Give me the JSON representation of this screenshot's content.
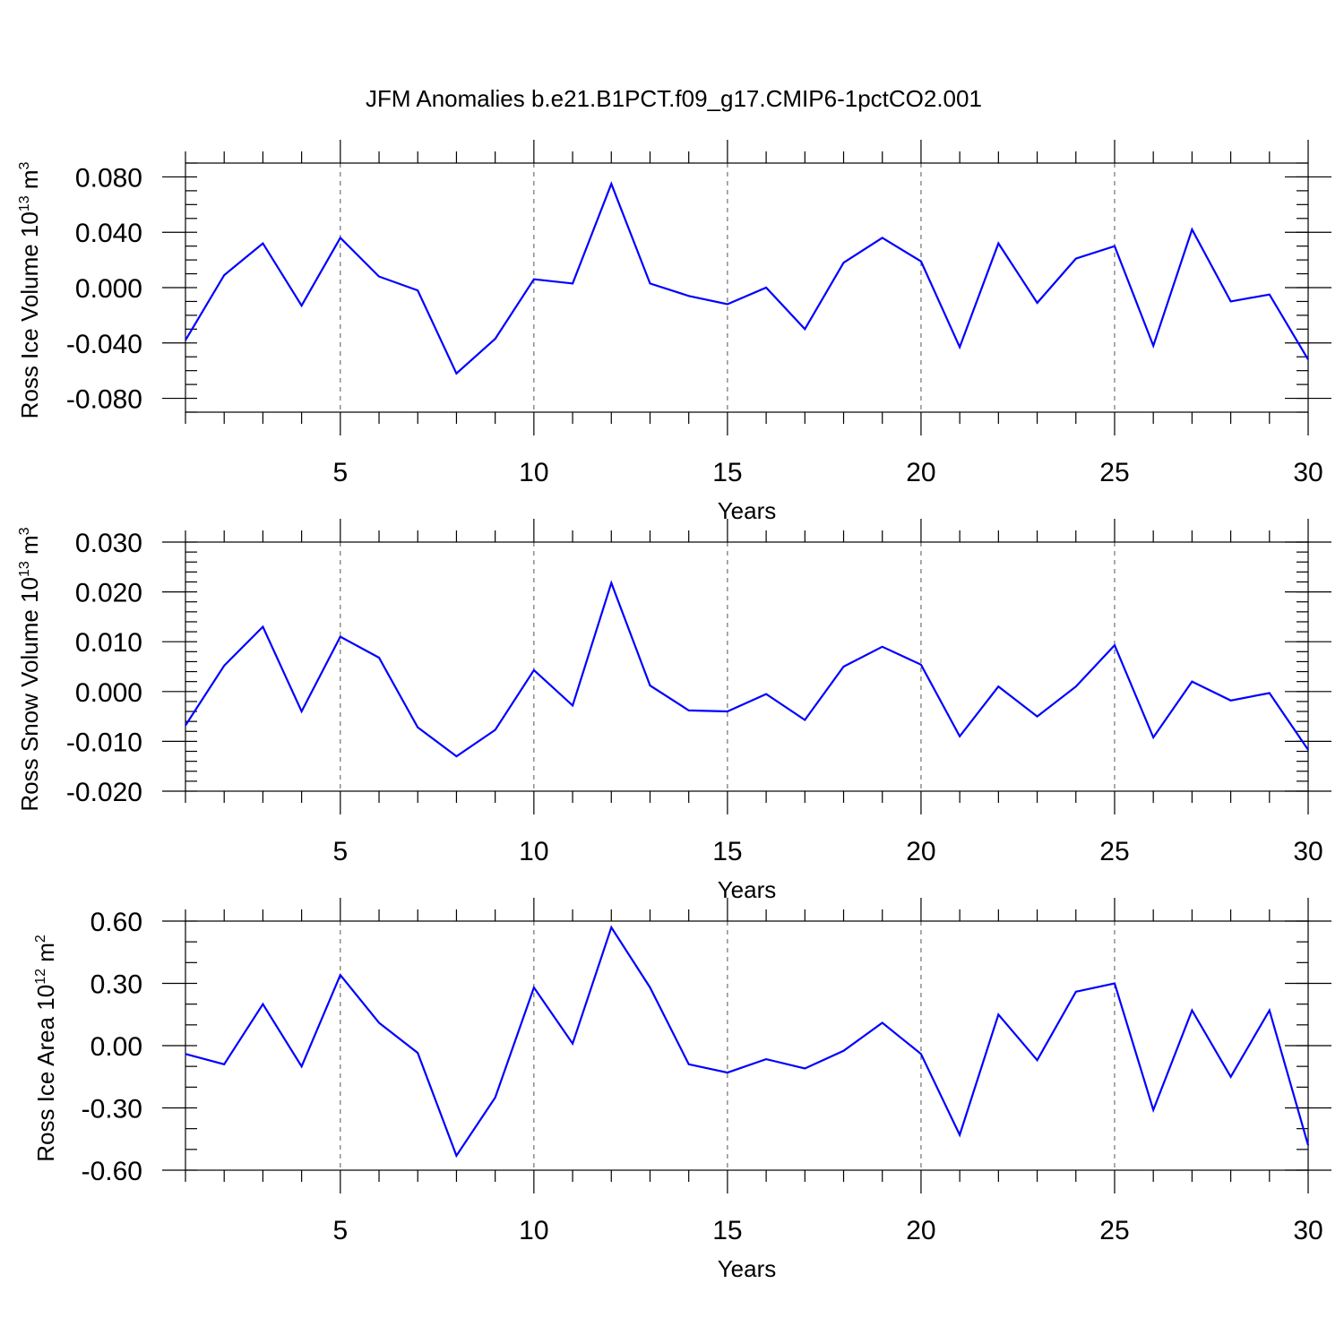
{
  "title": "JFM Anomalies b.e21.B1PCT.f09_g17.CMIP6-1pctCO2.001",
  "chart_data": [
    {
      "type": "line",
      "ylabel": {
        "main": "Ross Ice Volume 10",
        "sup1": "13",
        "unit": " m",
        "sup2": "3"
      },
      "xlabel": "Years",
      "xlim": [
        1,
        30
      ],
      "ylim": [
        -0.09,
        0.09
      ],
      "yticks": [
        -0.08,
        -0.04,
        0.0,
        0.04,
        0.08
      ],
      "ytick_labels": [
        "-0.080",
        "-0.040",
        "0.000",
        "0.040",
        "0.080"
      ],
      "yminor_step": 0.01,
      "xticks": [
        5,
        10,
        15,
        20,
        25,
        30
      ],
      "xtick_labels": [
        "5",
        "10",
        "15",
        "20",
        "25",
        "30"
      ],
      "grid": "dashed vertical at major x ticks",
      "series": [
        {
          "color": "#0000ff",
          "x": [
            1,
            2,
            3,
            4,
            5,
            6,
            7,
            8,
            9,
            10,
            11,
            12,
            13,
            14,
            15,
            16,
            17,
            18,
            19,
            20,
            21,
            22,
            23,
            24,
            25,
            26,
            27,
            28,
            29,
            30
          ],
          "values": [
            -0.038,
            0.009,
            0.032,
            -0.013,
            0.036,
            0.008,
            -0.002,
            -0.062,
            -0.037,
            0.006,
            0.003,
            0.075,
            0.003,
            -0.006,
            -0.012,
            0.0,
            -0.03,
            0.018,
            0.036,
            0.019,
            -0.043,
            0.032,
            -0.011,
            0.021,
            0.03,
            -0.042,
            0.042,
            -0.01,
            -0.005,
            -0.052
          ]
        }
      ]
    },
    {
      "type": "line",
      "ylabel": {
        "main": "Ross Snow Volume 10",
        "sup1": "13",
        "unit": " m",
        "sup2": "3"
      },
      "xlabel": "Years",
      "xlim": [
        1,
        30
      ],
      "ylim": [
        -0.02,
        0.03
      ],
      "yticks": [
        -0.02,
        -0.01,
        0.0,
        0.01,
        0.02,
        0.03
      ],
      "ytick_labels": [
        "-0.020",
        "-0.010",
        "0.000",
        "0.010",
        "0.020",
        "0.030"
      ],
      "yminor_step": 0.002,
      "xticks": [
        5,
        10,
        15,
        20,
        25,
        30
      ],
      "xtick_labels": [
        "5",
        "10",
        "15",
        "20",
        "25",
        "30"
      ],
      "grid": "dashed vertical at major x ticks",
      "series": [
        {
          "color": "#0000ff",
          "x": [
            1,
            2,
            3,
            4,
            5,
            6,
            7,
            8,
            9,
            10,
            11,
            12,
            13,
            14,
            15,
            16,
            17,
            18,
            19,
            20,
            21,
            22,
            23,
            24,
            25,
            26,
            27,
            28,
            29,
            30
          ],
          "values": [
            -0.0068,
            0.0052,
            0.013,
            -0.004,
            0.011,
            0.0068,
            -0.0072,
            -0.013,
            -0.0077,
            0.0043,
            -0.0028,
            0.0218,
            0.0012,
            -0.0038,
            -0.004,
            -0.0005,
            -0.0057,
            0.005,
            0.009,
            0.0054,
            -0.009,
            0.001,
            -0.005,
            0.001,
            0.0093,
            -0.0092,
            0.002,
            -0.0018,
            -0.0003,
            -0.0117
          ]
        }
      ]
    },
    {
      "type": "line",
      "ylabel": {
        "main": "Ross Ice Area 10",
        "sup1": "12",
        "unit": " m",
        "sup2": "2"
      },
      "xlabel": "Years",
      "xlim": [
        1,
        30
      ],
      "ylim": [
        -0.6,
        0.6
      ],
      "yticks": [
        -0.6,
        -0.3,
        0.0,
        0.3,
        0.6
      ],
      "ytick_labels": [
        "-0.60",
        "-0.30",
        "0.00",
        "0.30",
        "0.60"
      ],
      "yminor_step": 0.1,
      "xticks": [
        5,
        10,
        15,
        20,
        25,
        30
      ],
      "xtick_labels": [
        "5",
        "10",
        "15",
        "20",
        "25",
        "30"
      ],
      "grid": "dashed vertical at major x ticks",
      "series": [
        {
          "color": "#0000ff",
          "x": [
            1,
            2,
            3,
            4,
            5,
            6,
            7,
            8,
            9,
            10,
            11,
            12,
            13,
            14,
            15,
            16,
            17,
            18,
            19,
            20,
            21,
            22,
            23,
            24,
            25,
            26,
            27,
            28,
            29,
            30
          ],
          "values": [
            -0.04,
            -0.09,
            0.2,
            -0.1,
            0.34,
            0.11,
            -0.035,
            -0.53,
            -0.25,
            0.28,
            0.01,
            0.57,
            0.28,
            -0.09,
            -0.13,
            -0.065,
            -0.11,
            -0.025,
            0.11,
            -0.04,
            -0.43,
            0.15,
            -0.07,
            0.26,
            0.3,
            -0.31,
            0.17,
            -0.15,
            0.17,
            -0.48
          ]
        }
      ]
    }
  ]
}
